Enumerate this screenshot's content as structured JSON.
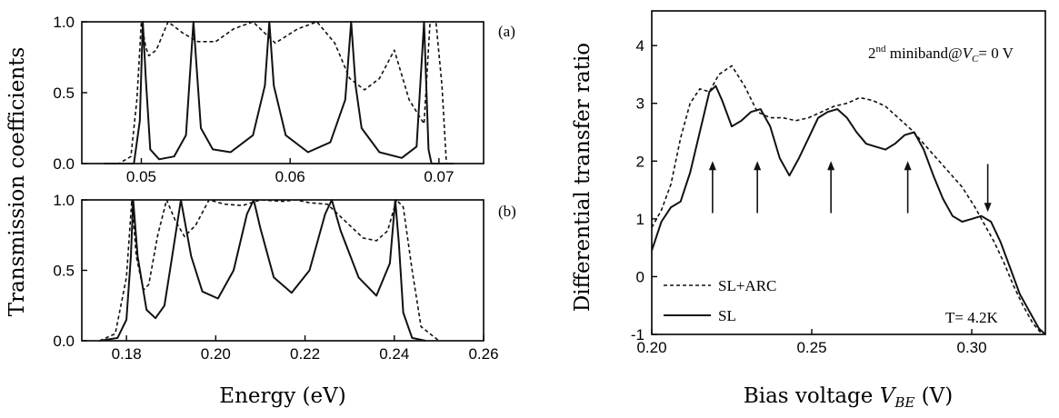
{
  "chart_data": [
    {
      "type": "line",
      "panel": "(a)",
      "xlim": [
        0.046,
        0.073
      ],
      "ylim": [
        0.0,
        1.0
      ],
      "xticks": [
        "0.05",
        "0.06",
        "0.07"
      ],
      "yticks": [
        "0.0",
        "0.5",
        "1.0"
      ],
      "xlabel": "",
      "ylabel": "Transmission coefficients",
      "series": [
        {
          "name": "solid",
          "style": "solid",
          "x": [
            0.0475,
            0.0495,
            0.0499,
            0.0501,
            0.0503,
            0.0506,
            0.0512,
            0.0522,
            0.053,
            0.0535,
            0.054,
            0.0548,
            0.056,
            0.0575,
            0.0583,
            0.0586,
            0.0589,
            0.0597,
            0.0612,
            0.0627,
            0.0637,
            0.0641,
            0.0644,
            0.0648,
            0.066,
            0.0675,
            0.0685,
            0.069,
            0.0693,
            0.0695,
            0.07,
            0.071
          ],
          "y": [
            0.0,
            0.0,
            0.3,
            1.0,
            0.6,
            0.1,
            0.03,
            0.05,
            0.2,
            1.0,
            0.25,
            0.1,
            0.08,
            0.2,
            0.55,
            1.0,
            0.55,
            0.2,
            0.08,
            0.15,
            0.45,
            1.0,
            0.55,
            0.25,
            0.08,
            0.04,
            0.12,
            1.0,
            0.1,
            0.0,
            0.0,
            0.0
          ]
        },
        {
          "name": "dashed",
          "style": "dashed",
          "x": [
            0.0475,
            0.0485,
            0.0493,
            0.0497,
            0.05,
            0.0503,
            0.0505,
            0.051,
            0.0518,
            0.0528,
            0.0538,
            0.055,
            0.0562,
            0.0575,
            0.059,
            0.0605,
            0.0618,
            0.063,
            0.064,
            0.065,
            0.066,
            0.067,
            0.068,
            0.069,
            0.0694,
            0.0698,
            0.0702,
            0.0705,
            0.071
          ],
          "y": [
            0.0,
            0.0,
            0.05,
            0.45,
            1.0,
            0.82,
            0.76,
            0.8,
            1.0,
            0.92,
            0.86,
            0.86,
            0.95,
            1.0,
            0.85,
            0.95,
            1.0,
            0.85,
            0.6,
            0.52,
            0.6,
            0.8,
            0.45,
            0.28,
            1.0,
            1.0,
            0.55,
            0.0,
            0.0
          ]
        }
      ]
    },
    {
      "type": "line",
      "panel": "(b)",
      "xlim": [
        0.17,
        0.26
      ],
      "ylim": [
        0.0,
        1.0
      ],
      "xticks": [
        "0.18",
        "0.20",
        "0.22",
        "0.24",
        "0.26"
      ],
      "yticks": [
        "0.0",
        "0.5",
        "1.0"
      ],
      "xlabel": "Energy (eV)",
      "ylabel": "Transmission coefficients",
      "series": [
        {
          "name": "solid",
          "style": "solid",
          "x": [
            0.174,
            0.178,
            0.18,
            0.181,
            0.1815,
            0.1825,
            0.1845,
            0.1865,
            0.1885,
            0.19,
            0.1922,
            0.1945,
            0.197,
            0.2005,
            0.204,
            0.207,
            0.2085,
            0.21,
            0.213,
            0.217,
            0.221,
            0.2245,
            0.226,
            0.228,
            0.232,
            0.236,
            0.239,
            0.2402,
            0.241,
            0.242,
            0.244,
            0.247
          ],
          "y": [
            0.0,
            0.02,
            0.15,
            0.6,
            1.0,
            0.6,
            0.22,
            0.16,
            0.25,
            0.55,
            1.0,
            0.6,
            0.35,
            0.3,
            0.5,
            0.9,
            1.0,
            0.8,
            0.45,
            0.34,
            0.5,
            0.9,
            1.0,
            0.78,
            0.45,
            0.32,
            0.55,
            1.0,
            0.7,
            0.2,
            0.02,
            0.0
          ]
        },
        {
          "name": "dashed",
          "style": "dashed",
          "x": [
            0.174,
            0.1775,
            0.18,
            0.1812,
            0.1822,
            0.1838,
            0.185,
            0.187,
            0.189,
            0.191,
            0.193,
            0.1955,
            0.1985,
            0.202,
            0.206,
            0.21,
            0.215,
            0.218,
            0.221,
            0.225,
            0.229,
            0.233,
            0.236,
            0.2385,
            0.2405,
            0.242,
            0.244,
            0.246,
            0.25
          ],
          "y": [
            0.0,
            0.05,
            0.45,
            1.0,
            0.6,
            0.36,
            0.4,
            0.75,
            1.0,
            0.85,
            0.74,
            0.82,
            1.0,
            0.97,
            0.96,
            1.0,
            0.99,
            1.0,
            0.98,
            0.97,
            0.85,
            0.73,
            0.71,
            0.78,
            1.0,
            0.95,
            0.5,
            0.1,
            0.0
          ]
        }
      ]
    },
    {
      "type": "line",
      "panel": "right",
      "xlim": [
        0.2,
        0.323
      ],
      "ylim": [
        -1,
        4.6
      ],
      "xticks": [
        "0.20",
        "0.25",
        "0.30"
      ],
      "yticks": [
        "-1",
        "0",
        "1",
        "2",
        "3",
        "4"
      ],
      "xlabel_main": "Bias voltage ",
      "xlabel_var": "V",
      "xlabel_sub": "BE",
      "xlabel_unit": " (V)",
      "ylabel": "Differential transfer ratio",
      "annotation_main": "2",
      "annotation_sup": "nd",
      "annotation_rest": " miniband@",
      "annotation_var": "V",
      "annotation_sub": "C",
      "annotation_end": "= 0 V",
      "temperature": "T= 4.2K",
      "legend": [
        "SL+ARC",
        "SL"
      ],
      "arrows_up_x": [
        0.219,
        0.233,
        0.256,
        0.28
      ],
      "arrow_down_x": 0.305,
      "series": [
        {
          "name": "SL",
          "style": "solid",
          "x": [
            0.2,
            0.203,
            0.206,
            0.209,
            0.212,
            0.215,
            0.218,
            0.22,
            0.222,
            0.225,
            0.228,
            0.231,
            0.234,
            0.237,
            0.24,
            0.243,
            0.246,
            0.249,
            0.252,
            0.255,
            0.258,
            0.261,
            0.264,
            0.267,
            0.27,
            0.273,
            0.276,
            0.279,
            0.282,
            0.285,
            0.288,
            0.291,
            0.294,
            0.297,
            0.3,
            0.303,
            0.306,
            0.309,
            0.312,
            0.315,
            0.318,
            0.321,
            0.323
          ],
          "y": [
            0.45,
            0.95,
            1.2,
            1.3,
            1.8,
            2.5,
            3.2,
            3.3,
            3.05,
            2.6,
            2.7,
            2.85,
            2.9,
            2.6,
            2.05,
            1.75,
            2.05,
            2.4,
            2.75,
            2.85,
            2.9,
            2.75,
            2.5,
            2.3,
            2.25,
            2.2,
            2.3,
            2.45,
            2.5,
            2.2,
            1.75,
            1.35,
            1.05,
            0.95,
            1.0,
            1.05,
            0.95,
            0.6,
            0.15,
            -0.3,
            -0.6,
            -0.9,
            -1.0
          ]
        },
        {
          "name": "SL+ARC",
          "style": "dashed",
          "x": [
            0.2,
            0.203,
            0.206,
            0.209,
            0.212,
            0.215,
            0.218,
            0.221,
            0.225,
            0.229,
            0.233,
            0.237,
            0.241,
            0.245,
            0.249,
            0.253,
            0.257,
            0.261,
            0.265,
            0.269,
            0.273,
            0.277,
            0.281,
            0.285,
            0.289,
            0.293,
            0.297,
            0.301,
            0.304,
            0.307,
            0.31,
            0.313,
            0.316,
            0.319,
            0.322
          ],
          "y": [
            0.85,
            1.15,
            1.6,
            2.4,
            3.0,
            3.25,
            3.2,
            3.5,
            3.65,
            3.3,
            2.85,
            2.75,
            2.75,
            2.7,
            2.75,
            2.85,
            2.95,
            3.0,
            3.1,
            3.05,
            2.95,
            2.75,
            2.55,
            2.3,
            2.05,
            1.8,
            1.55,
            1.2,
            0.9,
            0.6,
            0.25,
            -0.15,
            -0.5,
            -0.8,
            -1.0
          ]
        }
      ]
    }
  ]
}
